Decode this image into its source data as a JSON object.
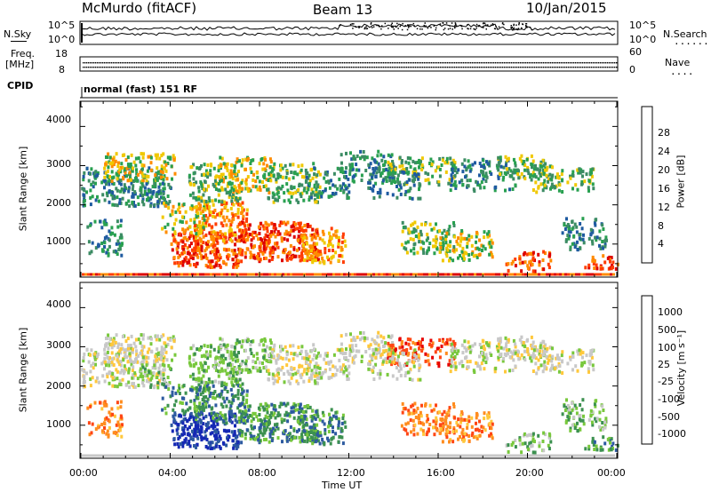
{
  "header": {
    "station": "McMurdo (fitACF)",
    "beam": "Beam 13",
    "date": "10/Jan/2015"
  },
  "noise_panel": {
    "left_label": "N.Sky",
    "right_label": "N.Search",
    "tick_top": "10^5",
    "tick_bottom": "10^0",
    "right_tick_top": "10^5",
    "right_tick_bottom": "10^0"
  },
  "freq_panel": {
    "left_label_line1": "Freq.",
    "left_label_line2": "[MHz]",
    "left_tick_top": "18",
    "left_tick_bottom": "8",
    "right_label": "Nave",
    "right_tick_top": "60",
    "right_tick_bottom": "0"
  },
  "cpid": {
    "label": "CPID",
    "value": "normal (fast) 151 RF"
  },
  "colors": {
    "power_scale": [
      "#0000ff",
      "#1e5aa0",
      "#3c8c64",
      "#28a050",
      "#f0c800",
      "#ff8c00",
      "#ff3c00",
      "#dc0000"
    ],
    "velocity_scale": [
      "#1428b4",
      "#2d5aa0",
      "#3c9150",
      "#78c83c",
      "#c8c8c8",
      "#ffc83c",
      "#ff8c1e",
      "#ff4614",
      "#e60000"
    ]
  },
  "chart_data": [
    {
      "type": "heatmap",
      "name": "power",
      "xlabel": "",
      "ylabel": "Slant Range [km]",
      "y_ticks": [
        "1000",
        "2000",
        "3000",
        "4000"
      ],
      "ylim": [
        180,
        4620
      ],
      "xlim_hours": [
        0,
        24
      ],
      "colorbar_label": "Power [dB]",
      "colorbar_ticks": [
        "4",
        "8",
        "12",
        "16",
        "20",
        "24",
        "28"
      ],
      "colorbar_range": [
        0,
        32
      ]
    },
    {
      "type": "heatmap",
      "name": "velocity",
      "xlabel": "Time UT",
      "ylabel": "Slant Range [km]",
      "y_ticks": [
        "1000",
        "2000",
        "3000",
        "4000"
      ],
      "ylim": [
        180,
        4620
      ],
      "xlim_hours": [
        0,
        24
      ],
      "x_ticks": [
        "00:00",
        "04:00",
        "08:00",
        "12:00",
        "16:00",
        "20:00",
        "00:00"
      ],
      "colorbar_label": "Velocity [m s⁻¹]",
      "colorbar_ticks": [
        "1000",
        "500",
        "100",
        "25",
        "-25",
        "-100",
        "-500",
        "-1000"
      ]
    }
  ]
}
